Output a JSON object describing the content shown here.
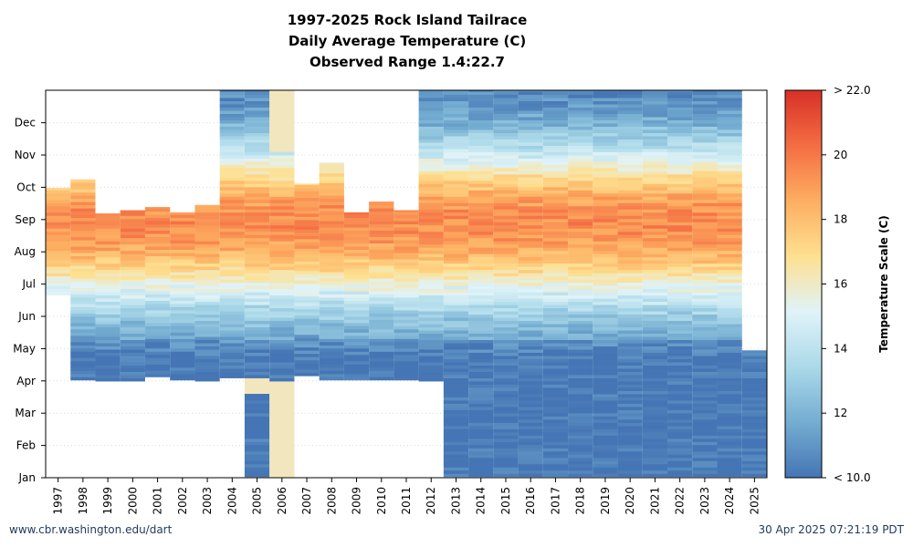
{
  "titles": {
    "line1": "1997-2025 Rock Island Tailrace",
    "line2": "Daily Average Temperature (C)",
    "line3": "Observed Range 1.4:22.7"
  },
  "footer": {
    "left": "www.cbr.washington.edu/dart",
    "right": "30 Apr 2025 07:21:19 PDT"
  },
  "colorbar": {
    "label": "Temperature Scale (C)",
    "ticks": [
      "< 10.0",
      "12",
      "14",
      "16",
      "18",
      "20",
      "> 22.0"
    ],
    "stops": [
      "#4575b4",
      "#74add1",
      "#abd9e9",
      "#e0f3f8",
      "#fee090",
      "#fdae61",
      "#f46d43",
      "#d73027"
    ]
  },
  "chart_data": {
    "type": "heatmap",
    "title": "1997-2025 Rock Island Tailrace",
    "subtitle": "Daily Average Temperature (C) — Observed Range 1.4:22.7",
    "xlabel": "",
    "ylabel": "",
    "colorbar_label": "Temperature Scale (C)",
    "zlim": [
      10,
      22
    ],
    "grid": true,
    "years": [
      "1997",
      "1998",
      "1999",
      "2000",
      "2001",
      "2002",
      "2003",
      "2004",
      "2005",
      "2006",
      "2007",
      "2008",
      "2009",
      "2010",
      "2011",
      "2012",
      "2013",
      "2014",
      "2015",
      "2016",
      "2017",
      "2018",
      "2019",
      "2020",
      "2021",
      "2022",
      "2023",
      "2024",
      "2025"
    ],
    "months": [
      "Jan",
      "Feb",
      "Mar",
      "Apr",
      "May",
      "Jun",
      "Jul",
      "Aug",
      "Sep",
      "Oct",
      "Nov",
      "Dec"
    ],
    "coverage_day_of_year": [
      {
        "year": "1997",
        "start": 172,
        "end": 273
      },
      {
        "year": "1998",
        "start": 92,
        "end": 281
      },
      {
        "year": "1999",
        "start": 91,
        "end": 249
      },
      {
        "year": "2000",
        "start": 91,
        "end": 252
      },
      {
        "year": "2001",
        "start": 95,
        "end": 255
      },
      {
        "year": "2002",
        "start": 92,
        "end": 250
      },
      {
        "year": "2003",
        "start": 91,
        "end": 257
      },
      {
        "year": "2004",
        "start": 94,
        "end": 365
      },
      {
        "year": "2005",
        "start": 1,
        "end": 365,
        "note": "Jan-Mar and Apr-Dec separated by a gap near late Mar"
      },
      {
        "year": "2006",
        "start": 1,
        "end": 365
      },
      {
        "year": "2007",
        "start": 96,
        "end": 277
      },
      {
        "year": "2008",
        "start": 92,
        "end": 297
      },
      {
        "year": "2009",
        "start": 92,
        "end": 250
      },
      {
        "year": "2010",
        "start": 92,
        "end": 260
      },
      {
        "year": "2011",
        "start": 92,
        "end": 252
      },
      {
        "year": "2012",
        "start": 91,
        "end": 365
      },
      {
        "year": "2013",
        "start": 1,
        "end": 365
      },
      {
        "year": "2014",
        "start": 1,
        "end": 365
      },
      {
        "year": "2015",
        "start": 1,
        "end": 365
      },
      {
        "year": "2016",
        "start": 1,
        "end": 365
      },
      {
        "year": "2017",
        "start": 1,
        "end": 365
      },
      {
        "year": "2018",
        "start": 1,
        "end": 365
      },
      {
        "year": "2019",
        "start": 1,
        "end": 365
      },
      {
        "year": "2020",
        "start": 1,
        "end": 365
      },
      {
        "year": "2021",
        "start": 1,
        "end": 365
      },
      {
        "year": "2022",
        "start": 1,
        "end": 365
      },
      {
        "year": "2023",
        "start": 1,
        "end": 365
      },
      {
        "year": "2024",
        "start": 1,
        "end": 365
      },
      {
        "year": "2025",
        "start": 1,
        "end": 120
      }
    ],
    "peak_temperature_day_approx": 240,
    "peak_temperature_approx": 19.5,
    "missing_fill_years": [
      "2005",
      "2006"
    ]
  }
}
